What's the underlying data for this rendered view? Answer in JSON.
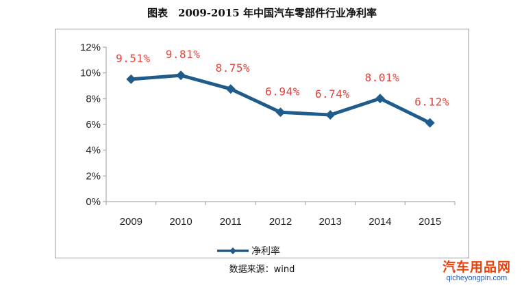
{
  "figure": {
    "title": "图表　2009-2015 年中国汽车零部件行业净利率",
    "source": "数据来源：wind"
  },
  "watermark": {
    "main": "汽车用品网",
    "sub": "qicheyongpin.com"
  },
  "chart_data": {
    "type": "line",
    "categories": [
      "2009",
      "2010",
      "2011",
      "2012",
      "2013",
      "2014",
      "2015"
    ],
    "series": [
      {
        "name": "净利率",
        "values": [
          9.51,
          9.81,
          8.75,
          6.94,
          6.74,
          8.01,
          6.12
        ],
        "labels": [
          "9.51%",
          "9.81%",
          "8.75%",
          "6.94%",
          "6.74%",
          "8.01%",
          "6.12%"
        ]
      }
    ],
    "y_ticks": [
      "0%",
      "2%",
      "4%",
      "6%",
      "8%",
      "10%",
      "12%"
    ],
    "ylim": [
      0,
      12
    ],
    "grid": false,
    "legend": "bottom-left",
    "colors": {
      "line": "#1f5c8b",
      "label": "#e0443c",
      "axis": "#9a9a9a"
    }
  }
}
